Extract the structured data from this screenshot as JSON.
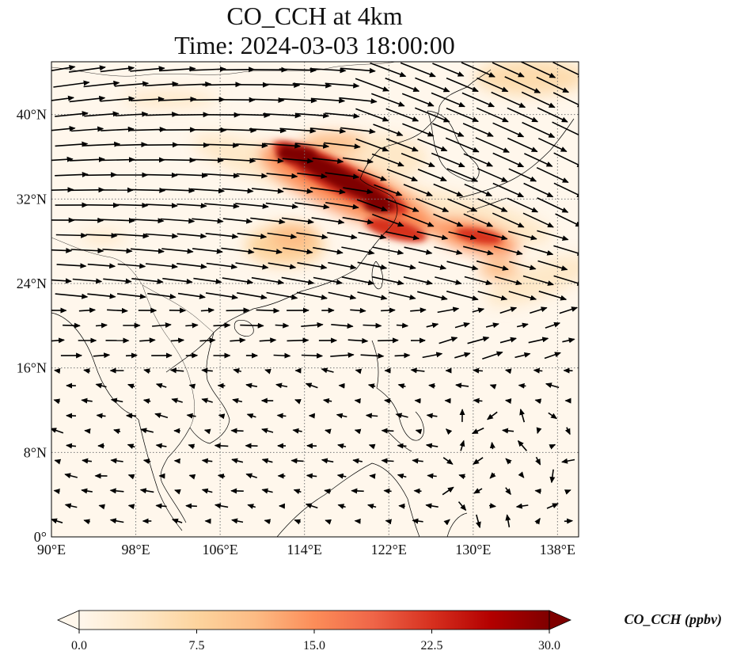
{
  "title_line1": "CO_CCH at 4km",
  "title_line2": "Time: 2024-03-03 18:00:00",
  "map": {
    "lon_range": [
      90,
      140
    ],
    "lat_range": [
      0,
      45
    ],
    "lon_ticks": [
      {
        "value": 90,
        "label": "90°E"
      },
      {
        "value": 98,
        "label": "98°E"
      },
      {
        "value": 106,
        "label": "106°E"
      },
      {
        "value": 114,
        "label": "114°E"
      },
      {
        "value": 122,
        "label": "122°E"
      },
      {
        "value": 130,
        "label": "130°E"
      },
      {
        "value": 138,
        "label": "138°E"
      }
    ],
    "lat_ticks": [
      {
        "value": 0,
        "label": "0°"
      },
      {
        "value": 8,
        "label": "8°N"
      },
      {
        "value": 16,
        "label": "16°N"
      },
      {
        "value": 24,
        "label": "24°N"
      },
      {
        "value": 32,
        "label": "32°N"
      },
      {
        "value": 40,
        "label": "40°N"
      }
    ],
    "gridlines": "dotted",
    "coastlines": true
  },
  "colorbar": {
    "label": "CO_CCH (ppbv)",
    "min": 0,
    "max": 30,
    "extend": "both",
    "colormap": "OrRd",
    "colors": [
      "#fff7ec",
      "#fee8c8",
      "#fdd49e",
      "#fdbb84",
      "#fc8d59",
      "#ef6548",
      "#d7301f",
      "#b30000",
      "#7f0000"
    ],
    "ticks": [
      {
        "value": 0,
        "label": "0.0"
      },
      {
        "value": 7.5,
        "label": "7.5"
      },
      {
        "value": 15,
        "label": "15.0"
      },
      {
        "value": 22.5,
        "label": "22.5"
      },
      {
        "value": 30,
        "label": "30.0"
      }
    ]
  }
}
